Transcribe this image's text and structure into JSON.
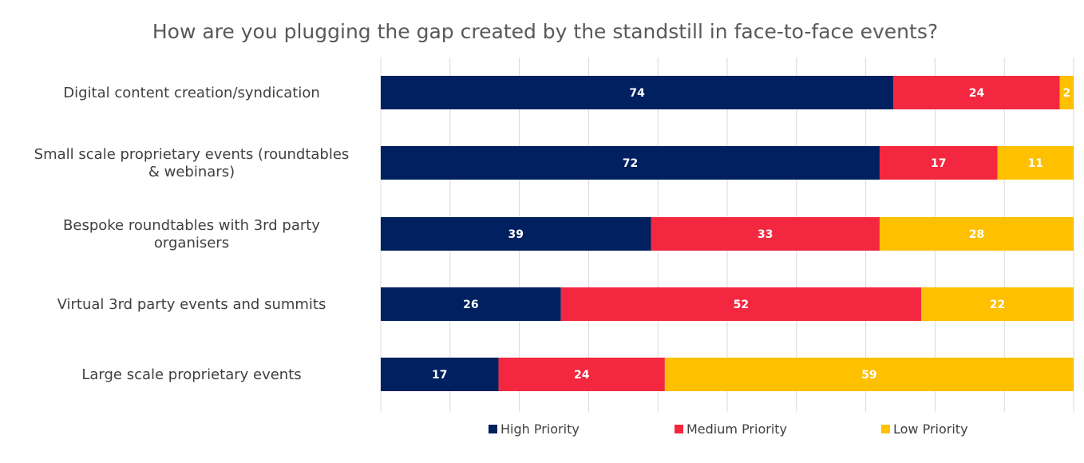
{
  "chart_data": {
    "type": "bar",
    "orientation": "horizontal",
    "stacked": true,
    "title": "How are you plugging the gap created by the standstill in face-to-face events?",
    "categories": [
      "Digital content creation/syndication",
      "Small scale proprietary events (roundtables & webinars)",
      "Bespoke roundtables with 3rd party organisers",
      "Virtual 3rd party events and summits",
      "Large scale proprietary events"
    ],
    "series": [
      {
        "name": "High Priority",
        "color": "#002060",
        "values": [
          74,
          72,
          39,
          26,
          17
        ]
      },
      {
        "name": "Medium Priority",
        "color": "#F32840",
        "values": [
          24,
          17,
          33,
          52,
          24
        ]
      },
      {
        "name": "Low Priority",
        "color": "#FFC000",
        "values": [
          2,
          11,
          28,
          22,
          59
        ]
      }
    ],
    "xlim": [
      0,
      100
    ],
    "grid": true,
    "legend": "bottom"
  }
}
